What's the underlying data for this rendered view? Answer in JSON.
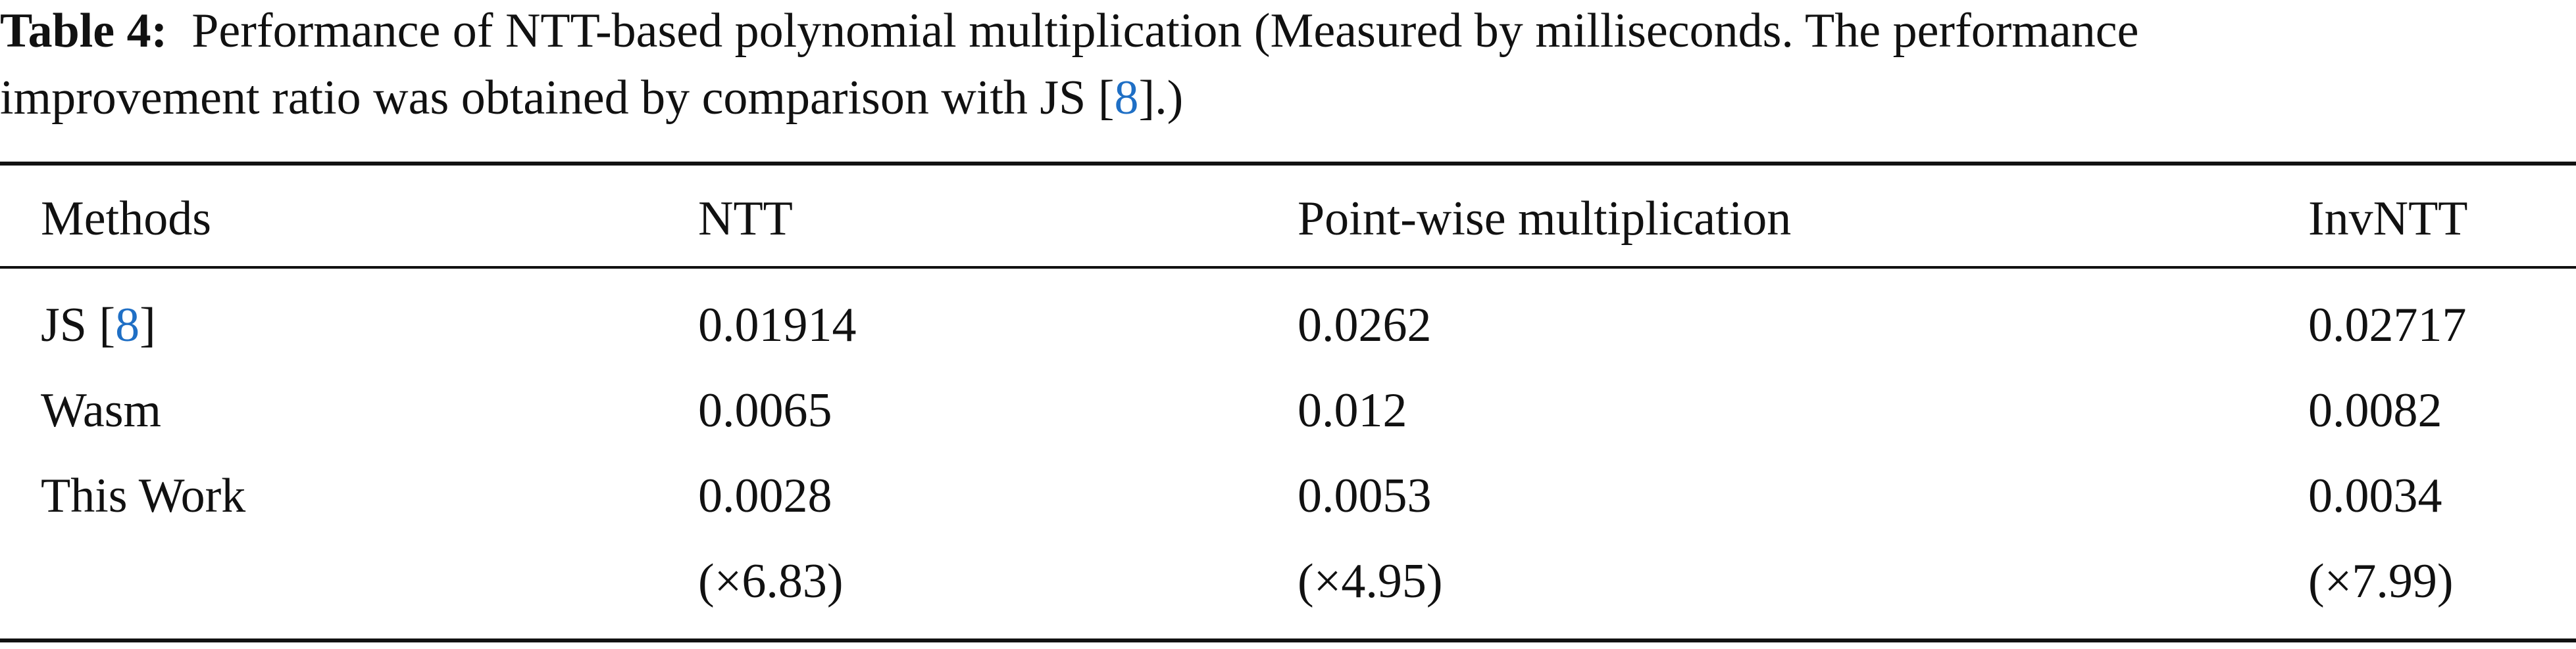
{
  "caption": {
    "label": "Table 4:",
    "line1": "Performance of NTT-based polynomial multiplication (Measured by milliseconds. The performance",
    "line2_before": "improvement ratio was obtained by comparison with JS [",
    "ref": "8",
    "line2_after": "].)"
  },
  "table": {
    "header": [
      "Methods",
      "NTT",
      "Point-wise multiplication",
      "InvNTT"
    ],
    "rows": [
      {
        "method": [
          "JS [",
          "8",
          "]"
        ],
        "values": [
          "0.01914",
          "0.0262",
          "0.02717"
        ]
      },
      {
        "method": [
          "Wasm"
        ],
        "values": [
          "0.0065",
          "0.012",
          "0.0082"
        ]
      },
      {
        "method": [
          "This Work"
        ],
        "values": [
          "0.0028",
          "0.0053",
          "0.0034"
        ],
        "improvement": [
          "(×6.83)",
          "(×4.95)",
          "(×7.99)"
        ]
      }
    ]
  }
}
